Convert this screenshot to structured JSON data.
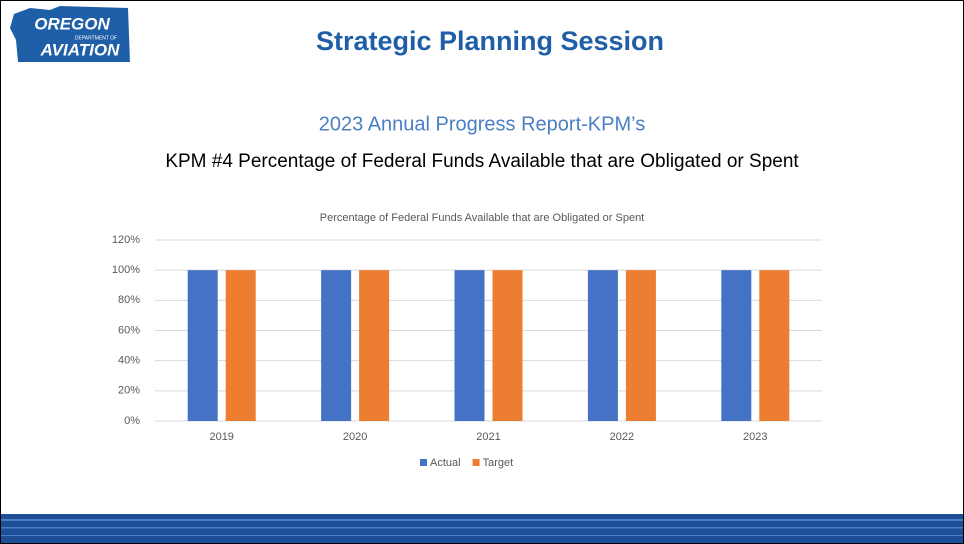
{
  "logo": {
    "line1": "OREGON",
    "line2": "DEPARTMENT OF",
    "line3": "AVIATION"
  },
  "header": {
    "title": "Strategic Planning Session",
    "subtitle": "2023 Annual Progress Report-KPM’s",
    "heading": "KPM #4 Percentage of Federal Funds Available that are Obligated or Spent"
  },
  "chart_data": {
    "type": "bar",
    "title": "Percentage of Federal Funds Available that are Obligated or Spent",
    "categories": [
      "2019",
      "2020",
      "2021",
      "2022",
      "2023"
    ],
    "series": [
      {
        "name": "Actual",
        "color": "#4472c4",
        "values": [
          100,
          100,
          100,
          100,
          100
        ]
      },
      {
        "name": "Target",
        "color": "#ed7d31",
        "values": [
          100,
          100,
          100,
          100,
          100
        ]
      }
    ],
    "ylim": [
      0,
      120
    ],
    "yticks": [
      {
        "value": 0,
        "label": "0%"
      },
      {
        "value": 20,
        "label": "20%"
      },
      {
        "value": 40,
        "label": "40%"
      },
      {
        "value": 60,
        "label": "60%"
      },
      {
        "value": 80,
        "label": "80%"
      },
      {
        "value": 100,
        "label": "100%"
      },
      {
        "value": 120,
        "label": "120%"
      }
    ],
    "grid": true,
    "legend": "bottom"
  }
}
